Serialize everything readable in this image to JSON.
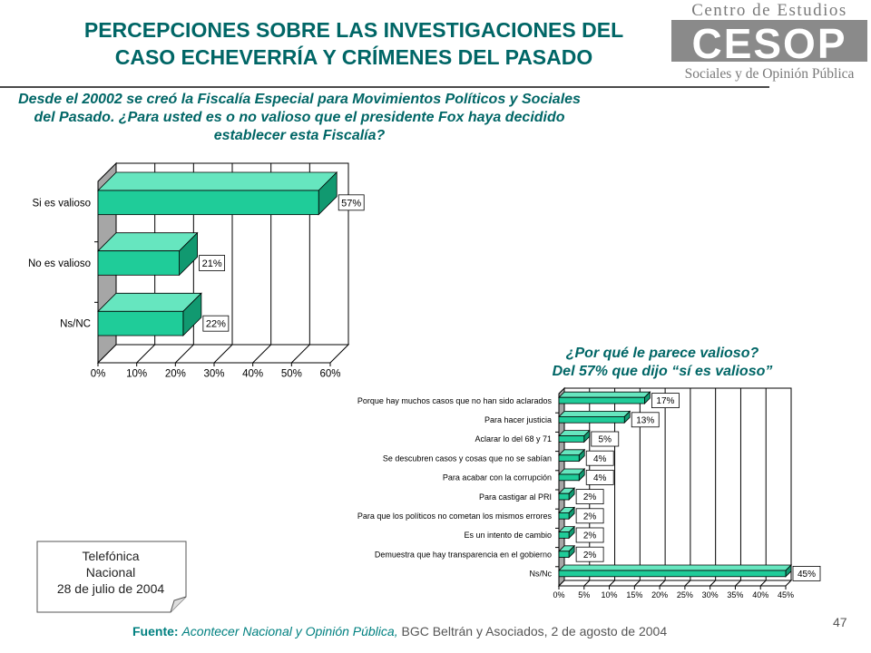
{
  "title_line1": "PERCEPCIONES SOBRE LAS INVESTIGACIONES DEL",
  "title_line2": "CASO ECHEVERRÍA Y CRÍMENES DEL PASADO",
  "logo": {
    "top_text": "Centro de Estudios",
    "big_text": "CESOP",
    "bottom_text": "Sociales y de Opinión Pública",
    "color": "#7a7a7a"
  },
  "question1": "Desde el 20002 se creó la Fiscalía Especial para Movimientos Políticos y Sociales del Pasado. ¿Para usted es o no valioso que el presidente Fox haya decidido establecer esta Fiscalía?",
  "question2_line1": "¿Por qué le parece valioso?",
  "question2_line2": "Del 57% que dijo “sí es valioso”",
  "note": {
    "line1": "Telefónica",
    "line2": "Nacional",
    "line3": "28 de julio de 2004"
  },
  "footer": {
    "label": "Fuente:",
    "source": "Acontecer Nacional y Opinión Pública,",
    "rest": "BGC Beltrán y Asociados, 2 de agosto de 2004"
  },
  "page_number": "47",
  "colors": {
    "bar": "#1fcc99",
    "bar_top": "#66e6bf",
    "bar_side": "#119970",
    "title": "#006666",
    "wall": "#a6a6a6"
  },
  "chart_data": [
    {
      "type": "bar",
      "orientation": "horizontal",
      "categories": [
        "Si es valioso",
        "No es valioso",
        "Ns/NC"
      ],
      "values": [
        57,
        21,
        22
      ],
      "data_labels": [
        "57%",
        "21%",
        "22%"
      ],
      "xlim": [
        0,
        60
      ],
      "xticks": [
        "0%",
        "10%",
        "20%",
        "30%",
        "40%",
        "50%",
        "60%"
      ],
      "grid": true
    },
    {
      "type": "bar",
      "orientation": "horizontal",
      "categories": [
        "Porque hay muchos casos que no han sido aclarados",
        "Para hacer justicia",
        "Aclarar lo del 68 y 71",
        "Se descubren casos y cosas que no se sabían",
        "Para acabar con la corrupción",
        "Para castigar al PRI",
        "Para que los políticos no cometan los mismos errores",
        "Es un intento de cambio",
        "Demuestra que hay transparencia en el gobierno",
        "Ns/Nc"
      ],
      "values": [
        17,
        13,
        5,
        4,
        4,
        2,
        2,
        2,
        2,
        45
      ],
      "data_labels": [
        "17%",
        "13%",
        "5%",
        "4%",
        "4%",
        "2%",
        "2%",
        "2%",
        "2%",
        "45%"
      ],
      "xlim": [
        0,
        45
      ],
      "xticks": [
        "0%",
        "5%",
        "10%",
        "15%",
        "20%",
        "25%",
        "30%",
        "35%",
        "40%",
        "45%"
      ],
      "grid": true
    }
  ]
}
